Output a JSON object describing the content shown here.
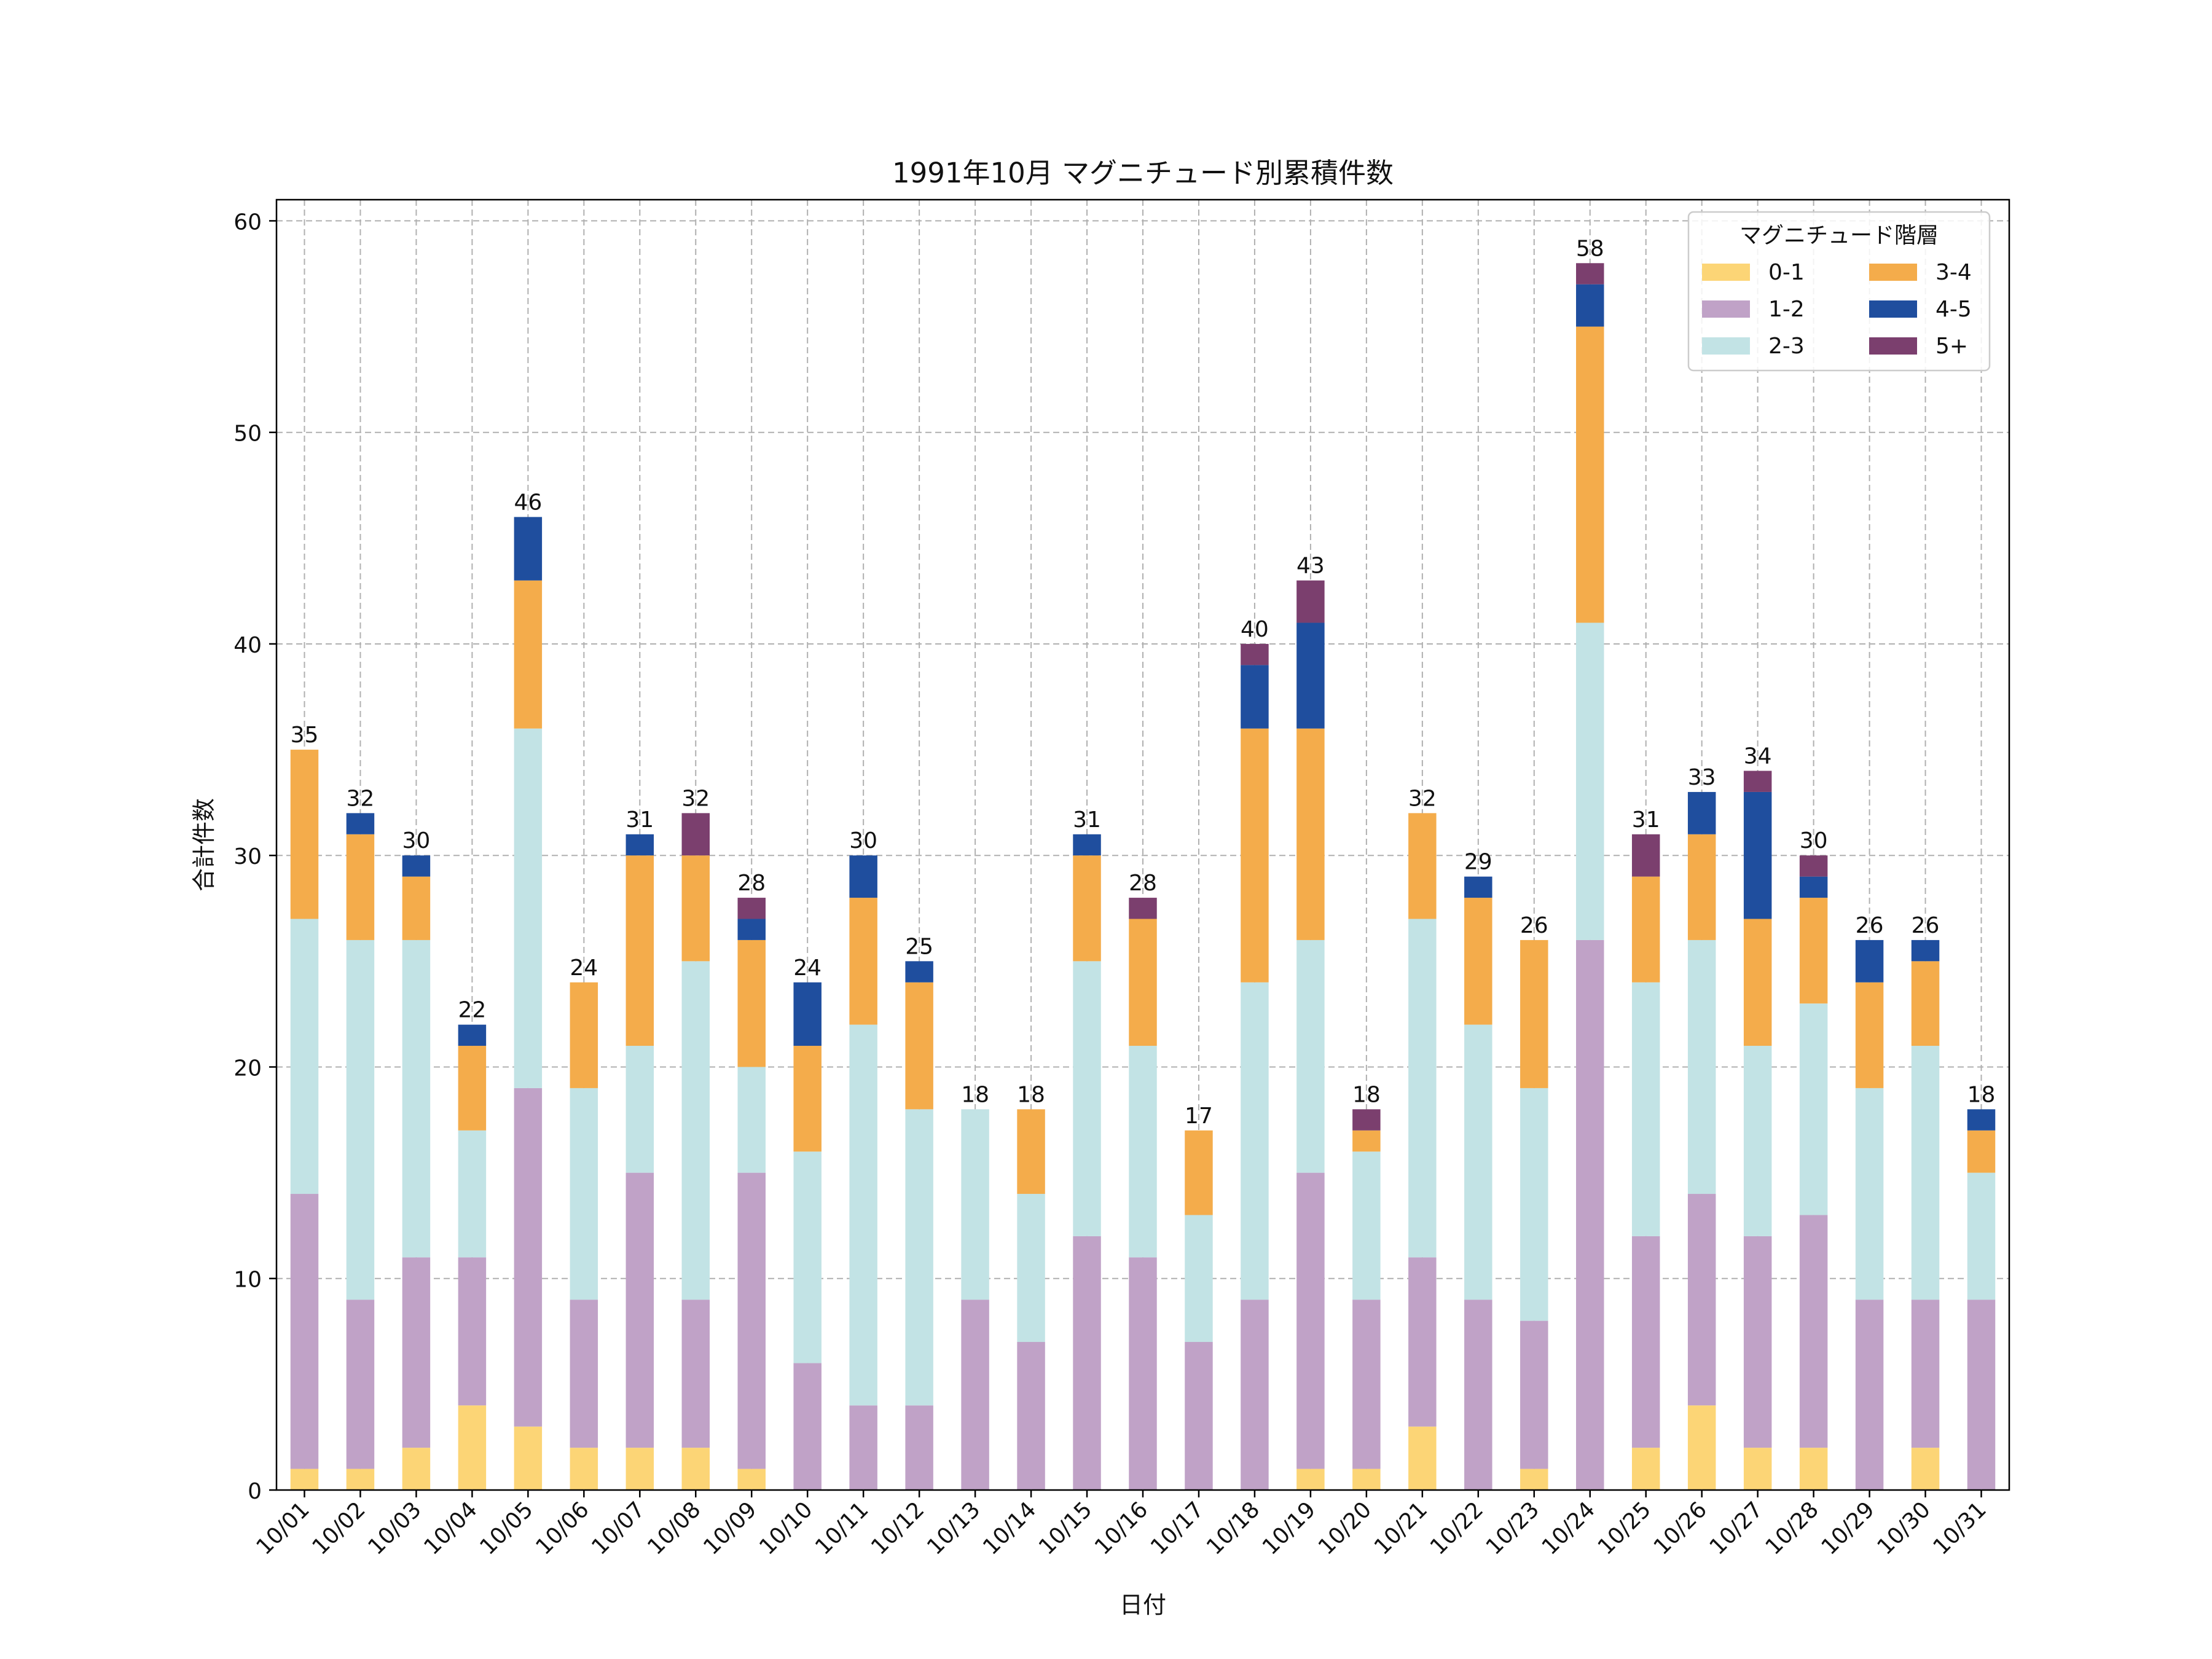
{
  "chart_data": {
    "type": "bar",
    "stacked": true,
    "title": "1991年10月 マグニチュード別累積件数",
    "xlabel": "日付",
    "ylabel": "合計件数",
    "ylim": [
      0,
      61
    ],
    "yticks": [
      0,
      10,
      20,
      30,
      40,
      50,
      60
    ],
    "grid": true,
    "legend": {
      "title": "マグニチュード階層",
      "position": "top-right",
      "columns": 2
    },
    "categories": [
      "10/01",
      "10/02",
      "10/03",
      "10/04",
      "10/05",
      "10/06",
      "10/07",
      "10/08",
      "10/09",
      "10/10",
      "10/11",
      "10/12",
      "10/13",
      "10/14",
      "10/15",
      "10/16",
      "10/17",
      "10/18",
      "10/19",
      "10/20",
      "10/21",
      "10/22",
      "10/23",
      "10/24",
      "10/25",
      "10/26",
      "10/27",
      "10/28",
      "10/29",
      "10/30",
      "10/31"
    ],
    "series": [
      {
        "name": "0-1",
        "color": "#fcd576",
        "values": [
          1,
          1,
          2,
          4,
          3,
          2,
          2,
          2,
          1,
          0,
          0,
          0,
          0,
          0,
          0,
          0,
          0,
          0,
          1,
          1,
          3,
          0,
          1,
          0,
          2,
          4,
          2,
          2,
          0,
          2,
          0
        ]
      },
      {
        "name": "1-2",
        "color": "#c0a2c7",
        "values": [
          13,
          8,
          9,
          7,
          16,
          7,
          13,
          7,
          14,
          6,
          4,
          4,
          9,
          7,
          12,
          11,
          7,
          9,
          14,
          8,
          8,
          9,
          7,
          26,
          10,
          10,
          10,
          11,
          9,
          7,
          9
        ]
      },
      {
        "name": "2-3",
        "color": "#c2e3e5",
        "values": [
          13,
          17,
          15,
          6,
          17,
          10,
          6,
          16,
          5,
          10,
          18,
          14,
          9,
          7,
          13,
          10,
          6,
          15,
          11,
          7,
          16,
          13,
          11,
          15,
          12,
          12,
          9,
          10,
          10,
          12,
          6
        ]
      },
      {
        "name": "3-4",
        "color": "#f4ac4b",
        "values": [
          8,
          5,
          3,
          4,
          7,
          5,
          9,
          5,
          6,
          5,
          6,
          6,
          0,
          4,
          5,
          6,
          4,
          12,
          10,
          1,
          5,
          6,
          7,
          14,
          5,
          5,
          6,
          5,
          5,
          4,
          2
        ]
      },
      {
        "name": "4-5",
        "color": "#1f4e9e",
        "values": [
          0,
          1,
          1,
          1,
          3,
          0,
          1,
          0,
          1,
          3,
          2,
          1,
          0,
          0,
          1,
          0,
          0,
          3,
          5,
          0,
          0,
          1,
          0,
          2,
          0,
          2,
          6,
          1,
          2,
          1,
          1
        ]
      },
      {
        "name": "5+",
        "color": "#7b3f6e",
        "values": [
          0,
          0,
          0,
          0,
          0,
          0,
          0,
          2,
          1,
          0,
          0,
          0,
          0,
          0,
          0,
          1,
          0,
          1,
          2,
          1,
          0,
          0,
          0,
          1,
          2,
          0,
          1,
          1,
          0,
          0,
          0
        ]
      }
    ],
    "totals": [
      35,
      32,
      30,
      22,
      46,
      24,
      31,
      32,
      28,
      24,
      30,
      25,
      18,
      18,
      31,
      28,
      17,
      40,
      43,
      18,
      32,
      29,
      26,
      58,
      31,
      33,
      34,
      30,
      26,
      26,
      18
    ]
  }
}
